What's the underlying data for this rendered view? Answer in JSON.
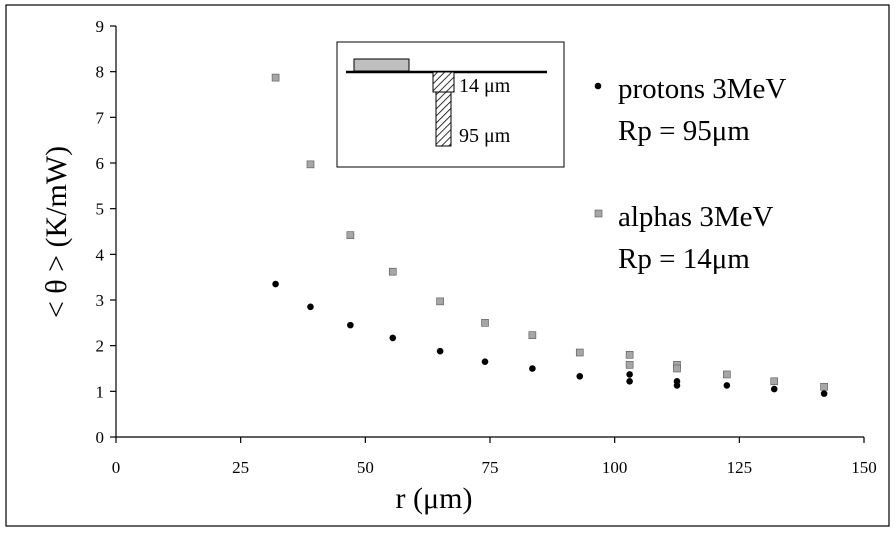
{
  "chart_data": {
    "type": "scatter",
    "xlabel": "r (μm)",
    "ylabel": "< θ > (K/mW)",
    "xlim": [
      0,
      150
    ],
    "ylim": [
      0,
      9
    ],
    "xticks": [
      0,
      25,
      50,
      75,
      100,
      125,
      150
    ],
    "yticks": [
      0,
      1,
      2,
      3,
      4,
      5,
      6,
      7,
      8,
      9
    ],
    "grid": false,
    "legend_position": "right",
    "series": [
      {
        "name": "protons 3MeV",
        "annotation": "Rp = 95μm",
        "marker": "circle",
        "color": "#000000",
        "points": [
          [
            32,
            3.35
          ],
          [
            39,
            2.85
          ],
          [
            47,
            2.45
          ],
          [
            55.5,
            2.17
          ],
          [
            65,
            1.88
          ],
          [
            74,
            1.65
          ],
          [
            83.5,
            1.5
          ],
          [
            93,
            1.33
          ],
          [
            103,
            1.37
          ],
          [
            103,
            1.22
          ],
          [
            112.5,
            1.22
          ],
          [
            112.5,
            1.13
          ],
          [
            122.5,
            1.13
          ],
          [
            132,
            1.05
          ],
          [
            142,
            0.95
          ]
        ]
      },
      {
        "name": "alphas 3MeV",
        "annotation": "Rp = 14μm",
        "marker": "square",
        "color": "#a6a6a6",
        "points": [
          [
            32,
            7.87
          ],
          [
            39,
            5.97
          ],
          [
            47,
            4.42
          ],
          [
            55.5,
            3.62
          ],
          [
            65,
            2.97
          ],
          [
            74,
            2.5
          ],
          [
            83.5,
            2.23
          ],
          [
            93,
            1.85
          ],
          [
            103,
            1.8
          ],
          [
            103,
            1.58
          ],
          [
            112.5,
            1.58
          ],
          [
            112.5,
            1.5
          ],
          [
            122.5,
            1.37
          ],
          [
            132,
            1.22
          ],
          [
            142,
            1.1
          ]
        ]
      }
    ],
    "inset": {
      "label_top": "14 μm",
      "label_bottom": "95 μm"
    }
  }
}
